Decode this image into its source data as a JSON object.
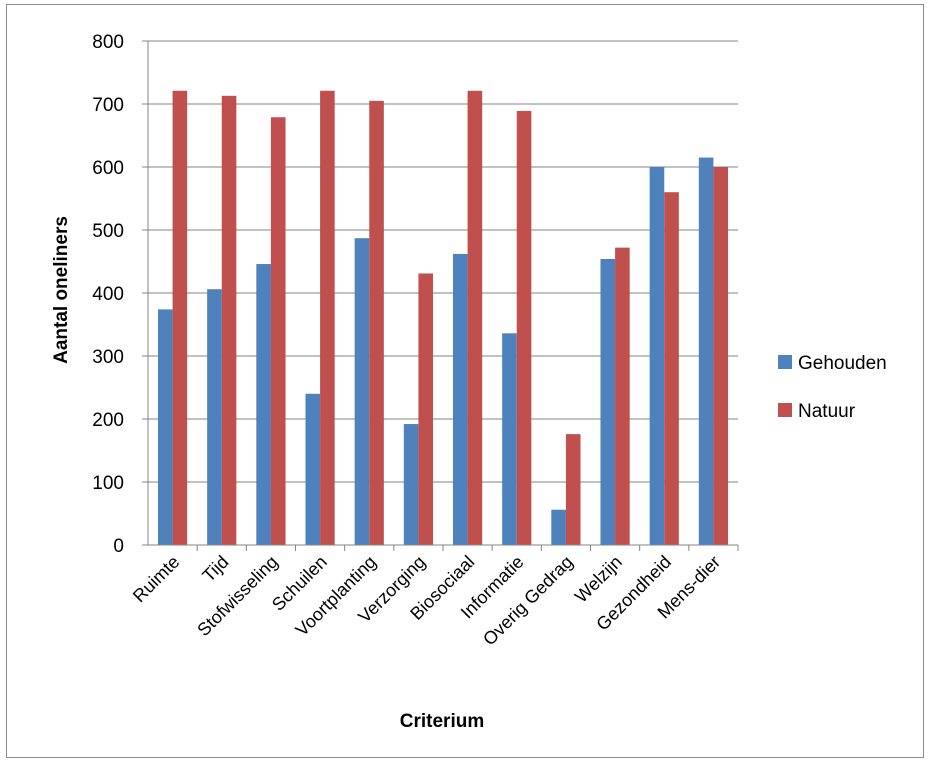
{
  "chart_data": {
    "type": "bar",
    "title": "",
    "xlabel": "Criterium",
    "ylabel": "Aantal oneliners",
    "ylim": [
      0,
      800
    ],
    "yticks": [
      0,
      100,
      200,
      300,
      400,
      500,
      600,
      700,
      800
    ],
    "grid": true,
    "legend_position": "right",
    "categories": [
      "Ruimte",
      "Tijd",
      "Stofwisseling",
      "Schuilen",
      "Voortplanting",
      "Verzorging",
      "Biosociaal",
      "Informatie",
      "Overig Gedrag",
      "Welzijn",
      "Gezondheid",
      "Mens-dier"
    ],
    "series": [
      {
        "name": "Gehouden",
        "color": "#4f81bd",
        "values": [
          374,
          406,
          446,
          240,
          487,
          192,
          462,
          336,
          56,
          454,
          600,
          615
        ]
      },
      {
        "name": "Natuur",
        "color": "#c0504d",
        "values": [
          721,
          713,
          679,
          721,
          705,
          431,
          721,
          689,
          176,
          472,
          560,
          600
        ]
      }
    ]
  }
}
